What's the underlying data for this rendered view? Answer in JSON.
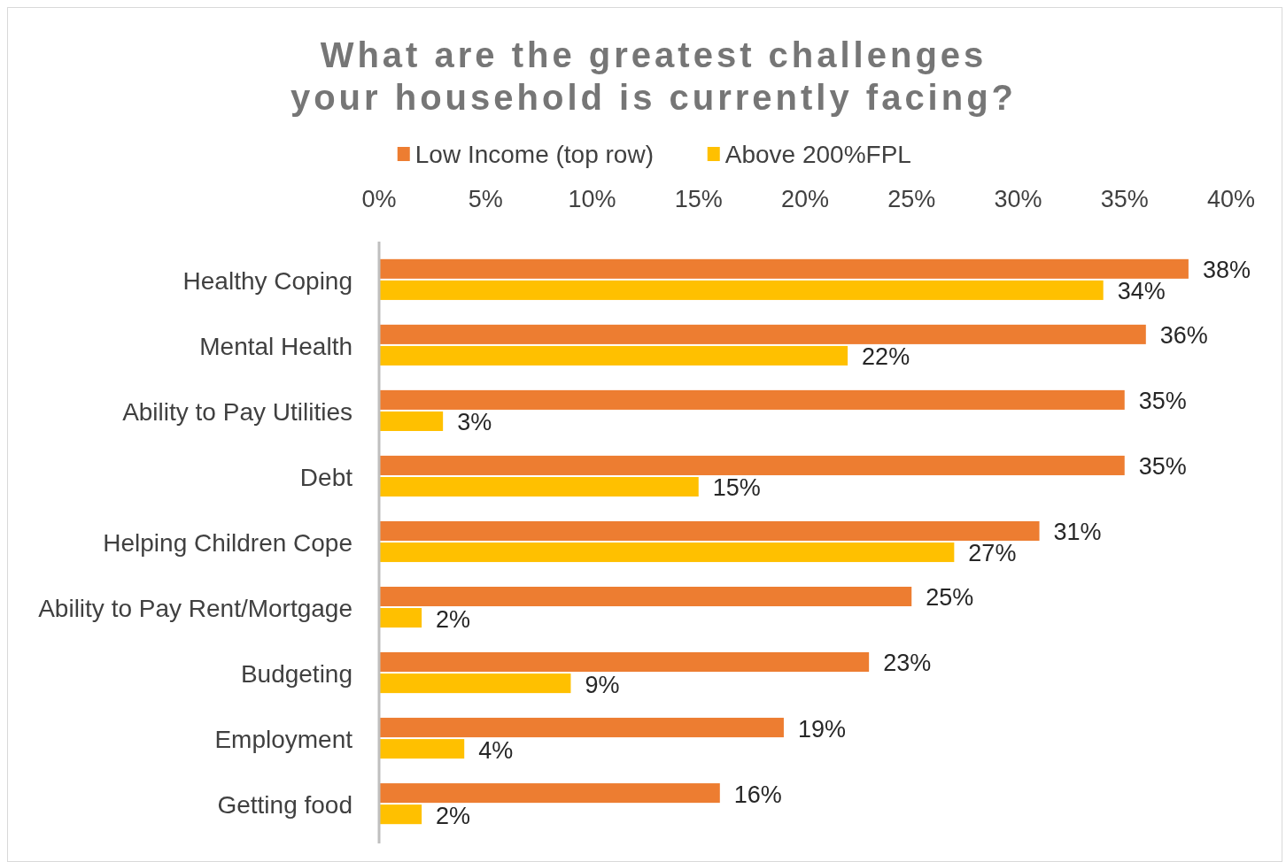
{
  "chart_data": {
    "type": "bar",
    "orientation": "horizontal",
    "title": "What are the greatest challenges your household is currently facing?",
    "categories": [
      "Healthy Coping",
      "Mental Health",
      "Ability to Pay Utilities",
      "Debt",
      "Helping Children Cope",
      "Ability to Pay Rent/Mortgage",
      "Budgeting",
      "Employment",
      "Getting food"
    ],
    "series": [
      {
        "name": "Low Income (top row)",
        "color": "#ed7d31",
        "values": [
          38,
          36,
          35,
          35,
          31,
          25,
          23,
          19,
          16
        ],
        "value_labels": [
          "38%",
          "36%",
          "35%",
          "35%",
          "31%",
          "25%",
          "23%",
          "19%",
          "16%"
        ]
      },
      {
        "name": "Above 200%FPL",
        "color": "#ffc000",
        "values": [
          34,
          22,
          3,
          15,
          27,
          2,
          9,
          4,
          2
        ],
        "value_labels": [
          "34%",
          "22%",
          "3%",
          "15%",
          "27%",
          "2%",
          "9%",
          "4%",
          "2%"
        ]
      }
    ],
    "xlim": [
      0,
      40
    ],
    "xticks": [
      {
        "value": 0,
        "label": "0%"
      },
      {
        "value": 5,
        "label": "5%"
      },
      {
        "value": 10,
        "label": "10%"
      },
      {
        "value": 15,
        "label": "15%"
      },
      {
        "value": 20,
        "label": "20%"
      },
      {
        "value": 25,
        "label": "25%"
      },
      {
        "value": 30,
        "label": "30%"
      },
      {
        "value": 35,
        "label": "35%"
      },
      {
        "value": 40,
        "label": "40%"
      }
    ],
    "grid": false,
    "legend": "top"
  }
}
